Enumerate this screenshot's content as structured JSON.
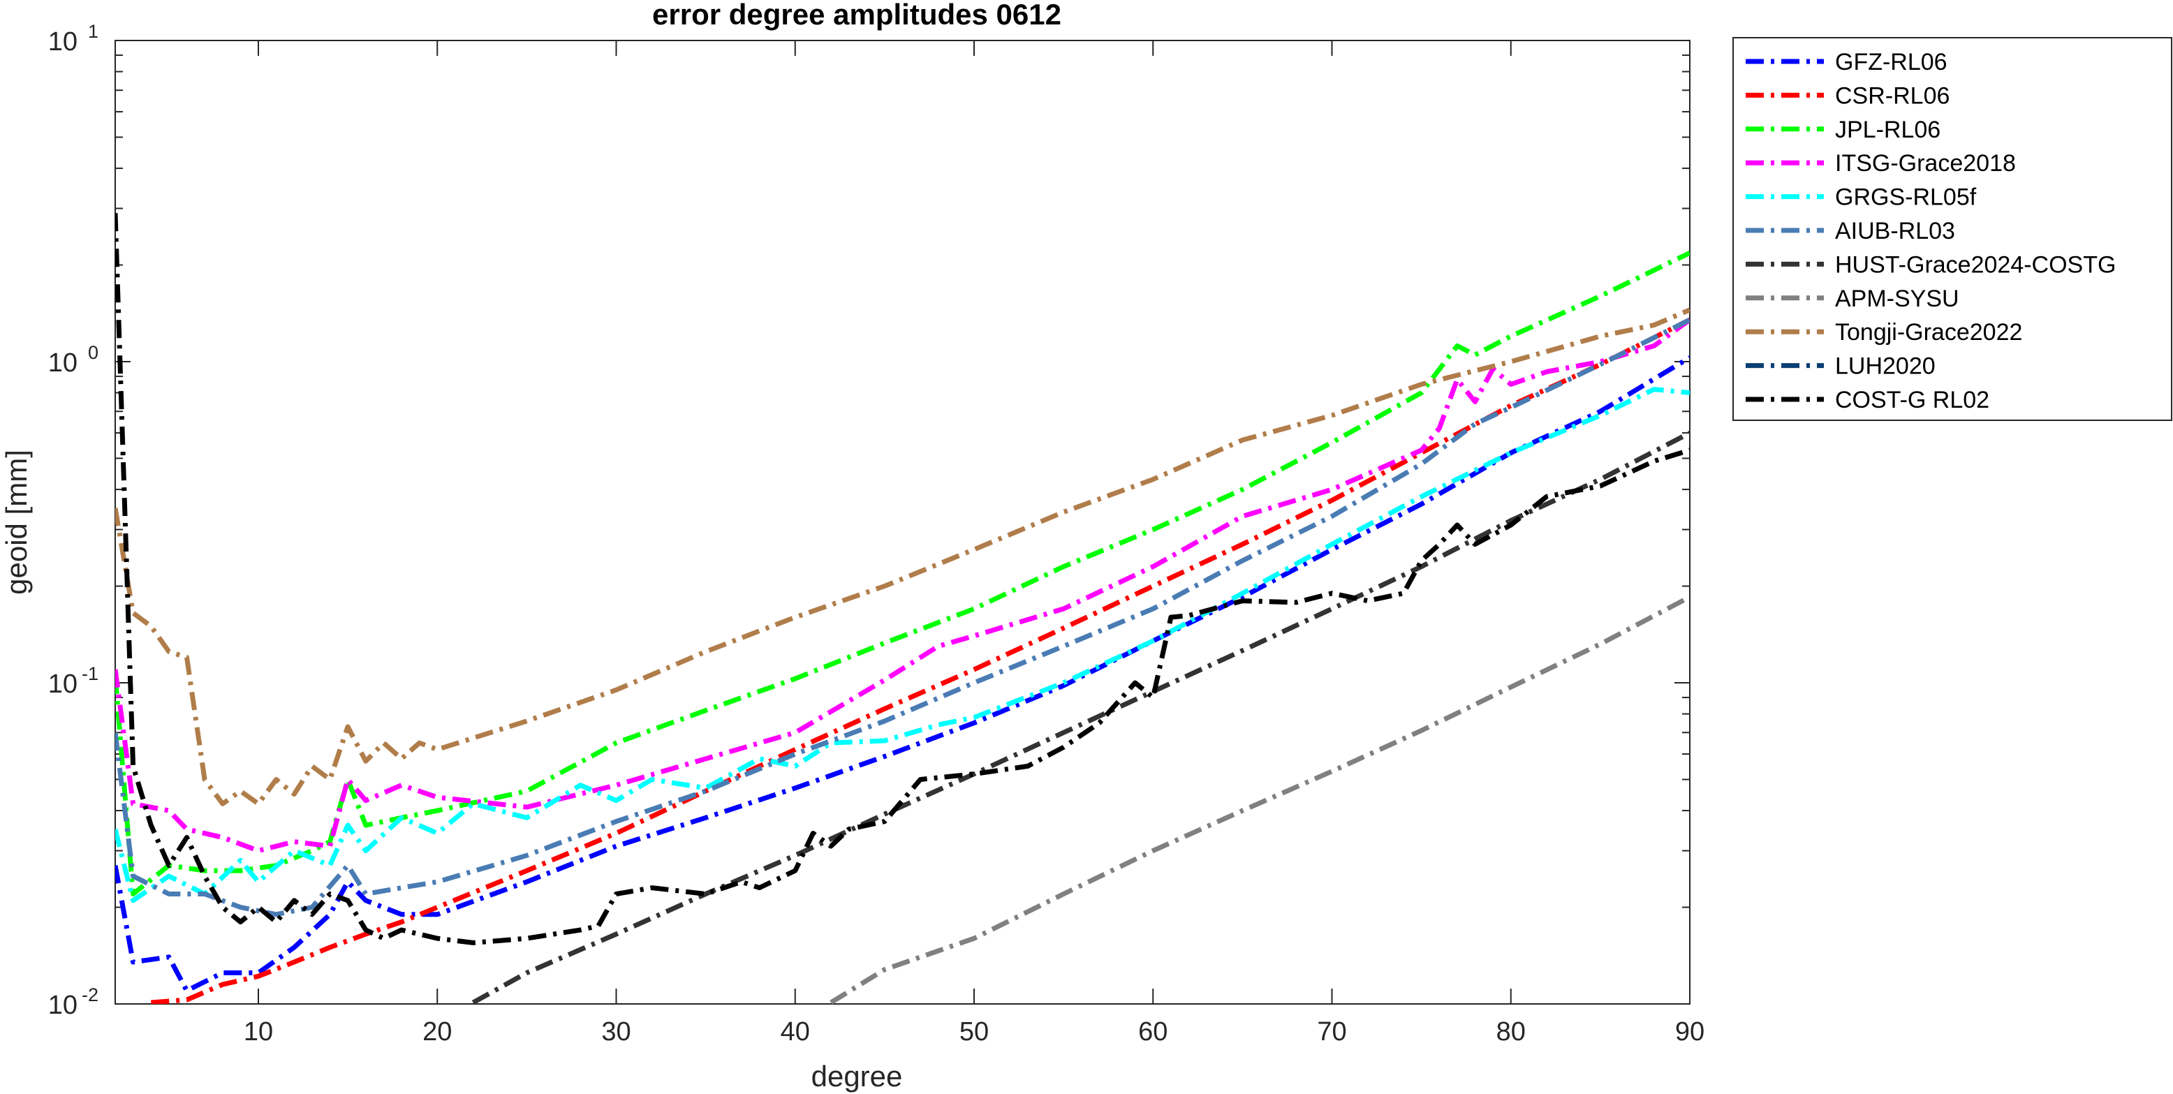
{
  "chart_data": {
    "type": "line",
    "title": "error degree amplitudes 0612",
    "xlabel": "degree",
    "ylabel": "geoid [mm]",
    "xlim": [
      2,
      90
    ],
    "ylim": [
      0.01,
      10
    ],
    "yscale": "log",
    "grid": false,
    "legend_position": "outside-right-top",
    "xticks": [
      10,
      20,
      30,
      40,
      50,
      60,
      70,
      80,
      90
    ],
    "yticks": [
      {
        "value": 0.01,
        "base": "10",
        "exp": "-2"
      },
      {
        "value": 0.1,
        "base": "10",
        "exp": "-1"
      },
      {
        "value": 1,
        "base": "10",
        "exp": "0"
      },
      {
        "value": 10,
        "base": "10",
        "exp": "1"
      }
    ],
    "series": [
      {
        "name": "GFZ-RL06",
        "color": "#0000ff",
        "dash": "dashdot",
        "points": [
          [
            2,
            0.027
          ],
          [
            3,
            0.0135
          ],
          [
            5,
            0.014
          ],
          [
            6,
            0.011
          ],
          [
            8,
            0.0125
          ],
          [
            10,
            0.0125
          ],
          [
            12,
            0.015
          ],
          [
            14,
            0.019
          ],
          [
            15,
            0.024
          ],
          [
            16,
            0.021
          ],
          [
            18,
            0.019
          ],
          [
            20,
            0.019
          ],
          [
            25,
            0.024
          ],
          [
            30,
            0.031
          ],
          [
            35,
            0.038
          ],
          [
            40,
            0.047
          ],
          [
            45,
            0.059
          ],
          [
            50,
            0.075
          ],
          [
            55,
            0.098
          ],
          [
            60,
            0.135
          ],
          [
            65,
            0.185
          ],
          [
            70,
            0.26
          ],
          [
            75,
            0.36
          ],
          [
            80,
            0.52
          ],
          [
            85,
            0.7
          ],
          [
            90,
            1.03
          ]
        ]
      },
      {
        "name": "CSR-RL06",
        "color": "#ff0000",
        "dash": "dashdot",
        "points": [
          [
            4,
            0.0101
          ],
          [
            6,
            0.0103
          ],
          [
            8,
            0.0115
          ],
          [
            10,
            0.0122
          ],
          [
            12,
            0.0135
          ],
          [
            14,
            0.015
          ],
          [
            16,
            0.0165
          ],
          [
            18,
            0.018
          ],
          [
            20,
            0.02
          ],
          [
            25,
            0.026
          ],
          [
            30,
            0.034
          ],
          [
            35,
            0.046
          ],
          [
            40,
            0.062
          ],
          [
            45,
            0.083
          ],
          [
            50,
            0.11
          ],
          [
            55,
            0.148
          ],
          [
            60,
            0.2
          ],
          [
            65,
            0.27
          ],
          [
            70,
            0.37
          ],
          [
            75,
            0.52
          ],
          [
            80,
            0.73
          ],
          [
            85,
            0.98
          ],
          [
            90,
            1.35
          ]
        ]
      },
      {
        "name": "JPL-RL06",
        "color": "#00ff00",
        "dash": "dashdot",
        "points": [
          [
            2,
            0.105
          ],
          [
            3,
            0.022
          ],
          [
            5,
            0.027
          ],
          [
            7,
            0.026
          ],
          [
            9,
            0.026
          ],
          [
            11,
            0.027
          ],
          [
            13,
            0.03
          ],
          [
            14,
            0.032
          ],
          [
            15,
            0.05
          ],
          [
            16,
            0.036
          ],
          [
            18,
            0.038
          ],
          [
            20,
            0.04
          ],
          [
            25,
            0.046
          ],
          [
            30,
            0.065
          ],
          [
            35,
            0.082
          ],
          [
            40,
            0.103
          ],
          [
            45,
            0.133
          ],
          [
            50,
            0.17
          ],
          [
            55,
            0.23
          ],
          [
            60,
            0.3
          ],
          [
            65,
            0.4
          ],
          [
            70,
            0.56
          ],
          [
            75,
            0.8
          ],
          [
            77,
            1.12
          ],
          [
            78,
            1.05
          ],
          [
            80,
            1.2
          ],
          [
            85,
            1.6
          ],
          [
            90,
            2.18
          ]
        ]
      },
      {
        "name": "ITSG-Grace2018",
        "color": "#ff00ff",
        "dash": "dashdot",
        "points": [
          [
            2,
            0.11
          ],
          [
            3,
            0.042
          ],
          [
            5,
            0.04
          ],
          [
            6,
            0.035
          ],
          [
            8,
            0.033
          ],
          [
            10,
            0.03
          ],
          [
            12,
            0.032
          ],
          [
            14,
            0.031
          ],
          [
            15,
            0.05
          ],
          [
            16,
            0.043
          ],
          [
            18,
            0.048
          ],
          [
            20,
            0.044
          ],
          [
            25,
            0.041
          ],
          [
            30,
            0.048
          ],
          [
            35,
            0.058
          ],
          [
            40,
            0.07
          ],
          [
            45,
            0.102
          ],
          [
            48,
            0.13
          ],
          [
            50,
            0.14
          ],
          [
            55,
            0.17
          ],
          [
            60,
            0.23
          ],
          [
            65,
            0.33
          ],
          [
            70,
            0.4
          ],
          [
            75,
            0.53
          ],
          [
            76,
            0.62
          ],
          [
            77,
            0.88
          ],
          [
            78,
            0.75
          ],
          [
            79,
            0.95
          ],
          [
            80,
            0.85
          ],
          [
            82,
            0.93
          ],
          [
            85,
            1.0
          ],
          [
            88,
            1.12
          ],
          [
            90,
            1.35
          ]
        ]
      },
      {
        "name": "GRGS-RL05f",
        "color": "#00ffff",
        "dash": "dashdot",
        "points": [
          [
            2,
            0.035
          ],
          [
            3,
            0.021
          ],
          [
            5,
            0.025
          ],
          [
            7,
            0.022
          ],
          [
            9,
            0.028
          ],
          [
            10,
            0.024
          ],
          [
            12,
            0.03
          ],
          [
            14,
            0.027
          ],
          [
            15,
            0.036
          ],
          [
            16,
            0.03
          ],
          [
            18,
            0.038
          ],
          [
            20,
            0.034
          ],
          [
            22,
            0.042
          ],
          [
            25,
            0.038
          ],
          [
            28,
            0.048
          ],
          [
            30,
            0.043
          ],
          [
            32,
            0.05
          ],
          [
            35,
            0.047
          ],
          [
            38,
            0.058
          ],
          [
            40,
            0.055
          ],
          [
            42,
            0.065
          ],
          [
            45,
            0.066
          ],
          [
            48,
            0.074
          ],
          [
            50,
            0.078
          ],
          [
            55,
            0.1
          ],
          [
            60,
            0.135
          ],
          [
            65,
            0.19
          ],
          [
            70,
            0.27
          ],
          [
            75,
            0.38
          ],
          [
            80,
            0.52
          ],
          [
            85,
            0.68
          ],
          [
            88,
            0.82
          ],
          [
            90,
            0.8
          ]
        ]
      },
      {
        "name": "AIUB-RL03",
        "color": "#4a7cb4",
        "dash": "dashdot",
        "points": [
          [
            2,
            0.07
          ],
          [
            3,
            0.025
          ],
          [
            5,
            0.022
          ],
          [
            7,
            0.022
          ],
          [
            9,
            0.02
          ],
          [
            11,
            0.019
          ],
          [
            13,
            0.02
          ],
          [
            15,
            0.027
          ],
          [
            16,
            0.022
          ],
          [
            18,
            0.023
          ],
          [
            20,
            0.024
          ],
          [
            25,
            0.029
          ],
          [
            30,
            0.037
          ],
          [
            35,
            0.046
          ],
          [
            40,
            0.06
          ],
          [
            45,
            0.076
          ],
          [
            50,
            0.1
          ],
          [
            55,
            0.13
          ],
          [
            60,
            0.17
          ],
          [
            65,
            0.24
          ],
          [
            70,
            0.33
          ],
          [
            75,
            0.48
          ],
          [
            78,
            0.64
          ],
          [
            80,
            0.72
          ],
          [
            85,
            0.98
          ],
          [
            90,
            1.35
          ]
        ]
      },
      {
        "name": "HUST-Grace2024-COSTG",
        "color": "#333333",
        "dash": "dashdot",
        "points": [
          [
            22,
            0.0101
          ],
          [
            25,
            0.0125
          ],
          [
            30,
            0.0165
          ],
          [
            35,
            0.022
          ],
          [
            40,
            0.029
          ],
          [
            45,
            0.039
          ],
          [
            50,
            0.052
          ],
          [
            55,
            0.07
          ],
          [
            60,
            0.094
          ],
          [
            65,
            0.126
          ],
          [
            70,
            0.17
          ],
          [
            75,
            0.23
          ],
          [
            80,
            0.32
          ],
          [
            85,
            0.43
          ],
          [
            90,
            0.6
          ]
        ]
      },
      {
        "name": "APM-SYSU",
        "color": "#808080",
        "dash": "dashdot",
        "points": [
          [
            42,
            0.0101
          ],
          [
            45,
            0.0128
          ],
          [
            50,
            0.016
          ],
          [
            55,
            0.022
          ],
          [
            60,
            0.03
          ],
          [
            65,
            0.04
          ],
          [
            70,
            0.053
          ],
          [
            75,
            0.071
          ],
          [
            80,
            0.097
          ],
          [
            85,
            0.132
          ],
          [
            90,
            0.185
          ]
        ]
      },
      {
        "name": "Tongji-Grace2022",
        "color": "#b07d4a",
        "dash": "dashdot",
        "points": [
          [
            2,
            0.35
          ],
          [
            3,
            0.165
          ],
          [
            4,
            0.15
          ],
          [
            5,
            0.125
          ],
          [
            6,
            0.12
          ],
          [
            7,
            0.05
          ],
          [
            8,
            0.042
          ],
          [
            9,
            0.046
          ],
          [
            10,
            0.042
          ],
          [
            11,
            0.05
          ],
          [
            12,
            0.045
          ],
          [
            13,
            0.055
          ],
          [
            14,
            0.05
          ],
          [
            15,
            0.073
          ],
          [
            16,
            0.057
          ],
          [
            17,
            0.065
          ],
          [
            18,
            0.058
          ],
          [
            19,
            0.065
          ],
          [
            20,
            0.062
          ],
          [
            25,
            0.076
          ],
          [
            30,
            0.095
          ],
          [
            35,
            0.125
          ],
          [
            40,
            0.16
          ],
          [
            45,
            0.2
          ],
          [
            50,
            0.26
          ],
          [
            55,
            0.34
          ],
          [
            60,
            0.43
          ],
          [
            65,
            0.57
          ],
          [
            70,
            0.68
          ],
          [
            75,
            0.85
          ],
          [
            80,
            1.0
          ],
          [
            85,
            1.2
          ],
          [
            88,
            1.3
          ],
          [
            90,
            1.45
          ]
        ]
      },
      {
        "name": "LUH2020",
        "color": "#0b3e73",
        "dash": "dashdot",
        "points": []
      },
      {
        "name": "COST-G RL02",
        "color": "#000000",
        "dash": "dashdot",
        "points": [
          [
            2,
            2.9
          ],
          [
            2.5,
            0.4
          ],
          [
            3,
            0.055
          ],
          [
            4,
            0.036
          ],
          [
            5,
            0.027
          ],
          [
            6,
            0.033
          ],
          [
            7,
            0.025
          ],
          [
            8,
            0.02
          ],
          [
            9,
            0.018
          ],
          [
            10,
            0.02
          ],
          [
            11,
            0.018
          ],
          [
            12,
            0.021
          ],
          [
            13,
            0.019
          ],
          [
            14,
            0.022
          ],
          [
            15,
            0.021
          ],
          [
            16,
            0.017
          ],
          [
            17,
            0.016
          ],
          [
            18,
            0.017
          ],
          [
            20,
            0.016
          ],
          [
            22,
            0.0155
          ],
          [
            25,
            0.016
          ],
          [
            28,
            0.017
          ],
          [
            29,
            0.0175
          ],
          [
            30,
            0.022
          ],
          [
            32,
            0.023
          ],
          [
            35,
            0.022
          ],
          [
            37,
            0.024
          ],
          [
            38,
            0.023
          ],
          [
            40,
            0.026
          ],
          [
            41,
            0.034
          ],
          [
            42,
            0.031
          ],
          [
            43,
            0.035
          ],
          [
            45,
            0.037
          ],
          [
            47,
            0.05
          ],
          [
            50,
            0.052
          ],
          [
            53,
            0.055
          ],
          [
            55,
            0.063
          ],
          [
            57,
            0.075
          ],
          [
            59,
            0.1
          ],
          [
            60,
            0.09
          ],
          [
            61,
            0.16
          ],
          [
            62,
            0.162
          ],
          [
            65,
            0.18
          ],
          [
            68,
            0.178
          ],
          [
            70,
            0.19
          ],
          [
            72,
            0.18
          ],
          [
            74,
            0.19
          ],
          [
            75,
            0.24
          ],
          [
            76,
            0.27
          ],
          [
            77,
            0.31
          ],
          [
            78,
            0.27
          ],
          [
            80,
            0.31
          ],
          [
            82,
            0.38
          ],
          [
            85,
            0.41
          ],
          [
            88,
            0.49
          ],
          [
            90,
            0.53
          ]
        ]
      }
    ]
  }
}
